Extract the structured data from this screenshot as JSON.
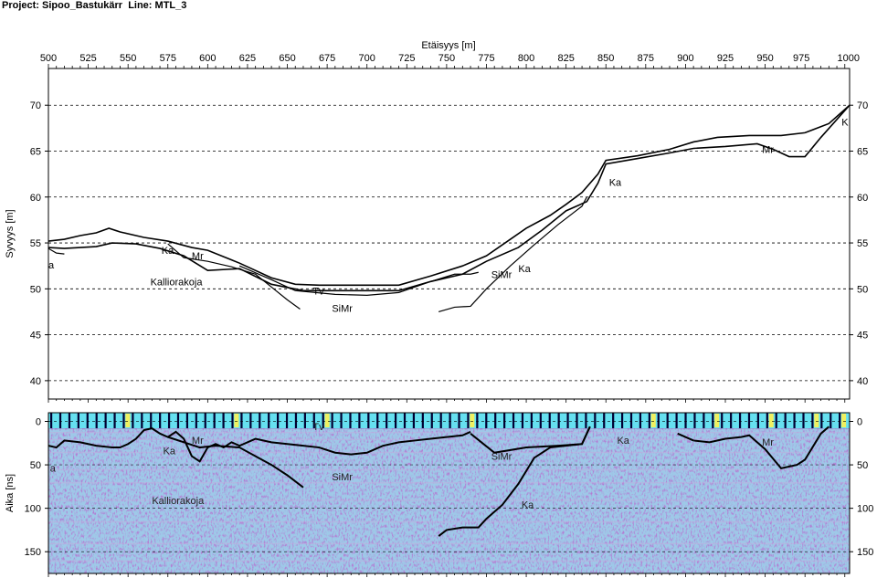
{
  "header": {
    "project_label": "Project:",
    "project_name": "Sipoo_Bastukärr",
    "line_label": "Line:",
    "line_name": "MTL_3"
  },
  "colors": {
    "axis": "#000000",
    "grid": "#000000",
    "radar_bg": "#9ec9e8",
    "radar_mid": "#c6a8dd",
    "radar_strong": "#7a3ca8",
    "marker_cyan": "#66e0f0",
    "marker_yellow": "#f0f060",
    "marker_dark": "#000033"
  },
  "chart_data": [
    {
      "type": "line",
      "panel": "elevation-profile",
      "xlabel": "Etäisyys [m]",
      "ylabel": "Syvyys [m]",
      "xlim": [
        500,
        1003
      ],
      "ylim": [
        38,
        74
      ],
      "x_ticks": [
        500,
        525,
        550,
        575,
        600,
        625,
        650,
        675,
        700,
        725,
        750,
        775,
        800,
        825,
        850,
        875,
        900,
        925,
        950,
        975,
        1000
      ],
      "y_ticks": [
        40,
        45,
        50,
        55,
        60,
        65,
        70
      ],
      "grid": "horizontal-dashed",
      "series": [
        {
          "values_x": [
            500,
            510,
            520,
            530,
            538,
            545,
            560,
            575,
            590,
            600,
            620,
            640,
            655,
            670,
            700,
            720,
            740,
            760,
            775,
            790,
            800,
            815,
            825,
            835,
            845,
            850,
            870,
            890,
            905,
            920,
            940,
            960,
            975,
            990,
            1003
          ],
          "values_y": [
            55.2,
            55.4,
            55.8,
            56.1,
            56.6,
            56.2,
            55.6,
            55.2,
            54.5,
            54.2,
            52.8,
            51.2,
            50.5,
            50.4,
            50.4,
            50.4,
            51.4,
            52.5,
            53.6,
            55.4,
            56.6,
            58.0,
            59.2,
            60.5,
            62.5,
            64.0,
            64.5,
            65.2,
            66.0,
            66.5,
            66.7,
            66.7,
            67.0,
            68.0,
            70.0
          ]
        },
        {
          "values_x": [
            500,
            510,
            520,
            530,
            540,
            555,
            570,
            585,
            600,
            620,
            640,
            660,
            700,
            720,
            740,
            760,
            775,
            795,
            810,
            825,
            838,
            845,
            850,
            870,
            890,
            905,
            925,
            945,
            955,
            965,
            975,
            985,
            1003
          ],
          "values_y": [
            54.5,
            54.4,
            54.5,
            54.6,
            55.0,
            54.9,
            54.4,
            53.6,
            52.0,
            52.2,
            50.5,
            49.8,
            49.8,
            49.8,
            50.8,
            51.6,
            53.0,
            54.5,
            56.4,
            58.5,
            59.5,
            61.5,
            63.6,
            64.2,
            64.8,
            65.3,
            65.5,
            65.8,
            65.2,
            64.4,
            64.4,
            66.5,
            70.0
          ]
        },
        {
          "values_x": [
            500,
            505,
            510
          ],
          "values_y": [
            54.4,
            53.9,
            53.8
          ]
        },
        {
          "values_x": [
            575,
            585,
            600,
            615,
            630,
            640,
            650,
            658
          ],
          "values_y": [
            54.9,
            53.4,
            53.0,
            52.4,
            51.6,
            50.2,
            48.8,
            47.8
          ]
        },
        {
          "values_x": [
            620,
            640,
            655,
            680,
            700,
            720,
            740,
            755,
            765,
            770
          ],
          "values_y": [
            52.5,
            51.0,
            49.8,
            49.4,
            49.3,
            49.6,
            50.8,
            51.6,
            51.6,
            51.8
          ]
        },
        {
          "values_x": [
            745,
            755,
            765,
            775,
            790,
            805,
            820,
            835,
            838
          ],
          "values_y": [
            47.5,
            48.0,
            48.1,
            50.0,
            52.5,
            54.8,
            57.0,
            59.0,
            60.0
          ]
        }
      ],
      "labels": [
        {
          "text": "Ka",
          "x": 571,
          "y": 53.8
        },
        {
          "text": "Mr",
          "x": 590,
          "y": 53.2
        },
        {
          "text": "Kalliorakoja",
          "x": 564,
          "y": 50.4
        },
        {
          "text": "a",
          "x": 500,
          "y": 52.2
        },
        {
          "text": "Tv",
          "x": 666,
          "y": 49.4
        },
        {
          "text": "SiMr",
          "x": 678,
          "y": 47.5
        },
        {
          "text": "SiMr",
          "x": 778,
          "y": 51.2
        },
        {
          "text": "Ka",
          "x": 795,
          "y": 51.8
        },
        {
          "text": "Ka",
          "x": 852,
          "y": 61.2
        },
        {
          "text": "Mr",
          "x": 948,
          "y": 64.8
        },
        {
          "text": "K",
          "x": 998,
          "y": 67.8
        }
      ]
    },
    {
      "type": "heatmap",
      "panel": "radar-section",
      "ylabel": "Aika [ns]",
      "xlim": [
        500,
        1003
      ],
      "ylim": [
        175,
        -10
      ],
      "y_ticks": [
        0,
        50,
        100,
        150
      ],
      "grid": "horizontal-dashed",
      "series": [
        {
          "values_x": [
            500,
            505,
            510,
            520,
            530,
            540,
            545,
            550,
            555,
            560,
            565,
            570,
            575,
            580,
            585,
            590,
            595,
            600,
            605,
            610,
            615,
            620,
            630,
            640,
            650,
            660,
            670,
            680,
            690,
            700,
            710,
            720,
            730,
            740,
            750,
            760,
            765
          ],
          "values_y": [
            28,
            30,
            22,
            24,
            28,
            30,
            30,
            26,
            20,
            10,
            8,
            14,
            18,
            12,
            20,
            40,
            46,
            30,
            26,
            30,
            24,
            28,
            20,
            24,
            26,
            28,
            30,
            36,
            38,
            36,
            28,
            24,
            22,
            20,
            18,
            16,
            12
          ]
        },
        {
          "values_x": [
            575,
            585,
            595,
            605,
            620,
            630,
            640,
            650,
            660
          ],
          "values_y": [
            18,
            24,
            30,
            28,
            30,
            40,
            50,
            62,
            76
          ]
        },
        {
          "values_x": [
            745,
            750,
            760,
            770,
            775,
            785,
            795,
            805,
            815,
            825,
            835,
            840
          ],
          "values_y": [
            132,
            125,
            122,
            122,
            112,
            96,
            72,
            42,
            30,
            28,
            26,
            6
          ]
        },
        {
          "values_x": [
            765,
            780,
            800,
            820,
            835,
            840
          ],
          "values_y": [
            14,
            36,
            30,
            28,
            26,
            6
          ]
        },
        {
          "values_x": [
            905,
            915,
            925,
            935,
            940,
            945,
            950,
            960,
            970,
            975,
            985,
            990
          ],
          "values_y": [
            22,
            24,
            20,
            18,
            16,
            24,
            32,
            54,
            50,
            44,
            14,
            6
          ]
        },
        {
          "values_x": [
            895,
            905
          ],
          "values_y": [
            14,
            22
          ]
        }
      ],
      "labels": [
        {
          "text": "a",
          "x": 501,
          "y": 58
        },
        {
          "text": "Ka",
          "x": 572,
          "y": 38
        },
        {
          "text": "Mr",
          "x": 590,
          "y": 26
        },
        {
          "text": "Tv",
          "x": 666,
          "y": 10
        },
        {
          "text": "SiMr",
          "x": 678,
          "y": 68
        },
        {
          "text": "SiMr",
          "x": 778,
          "y": 44
        },
        {
          "text": "Ka",
          "x": 857,
          "y": 26
        },
        {
          "text": "Ka",
          "x": 797,
          "y": 100
        },
        {
          "text": "Mr",
          "x": 948,
          "y": 28
        },
        {
          "text": "Kalliorakoja",
          "x": 565,
          "y": 95
        }
      ]
    }
  ]
}
